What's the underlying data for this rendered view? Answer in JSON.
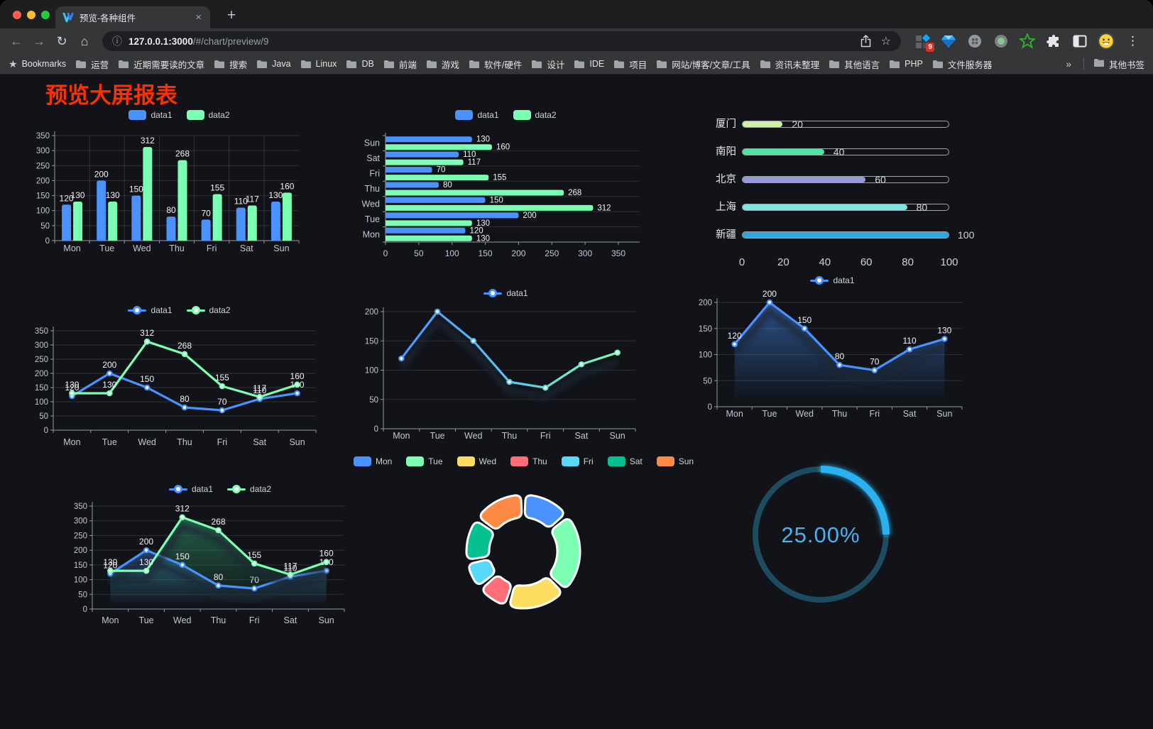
{
  "browser": {
    "tab": {
      "title": "预览-各种组件"
    },
    "address": {
      "host": "127.0.0.1:3000",
      "path": "/#/chart/preview/9"
    },
    "extensions_badge": "9",
    "bookmarks": {
      "star_label": "Bookmarks",
      "folders": [
        "运营",
        "近期需要读的文章",
        "搜索",
        "Java",
        "Linux",
        "DB",
        "前端",
        "游戏",
        "软件/硬件",
        "设计",
        "IDE",
        "项目",
        "网站/博客/文章/工具",
        "资讯未整理",
        "其他语言",
        "PHP",
        "文件服务器"
      ],
      "other": "其他书签"
    }
  },
  "icons": {
    "back": "←",
    "forward": "→",
    "reload": "↻",
    "home": "⌂",
    "info": "ⓘ",
    "bookmark_star": "☆",
    "tab_close": "×",
    "new_tab": "+",
    "menu_dots": "⋮",
    "bookmarks_star": "★",
    "overflow": "»"
  },
  "page": {
    "title": "预览大屏报表"
  },
  "chart_data": [
    {
      "id": "bar-vertical-grouped",
      "type": "bar",
      "categories": [
        "Mon",
        "Tue",
        "Wed",
        "Thu",
        "Fri",
        "Sat",
        "Sun"
      ],
      "series": [
        {
          "name": "data1",
          "color": "#4992ff",
          "values": [
            120,
            200,
            150,
            80,
            70,
            110,
            130
          ]
        },
        {
          "name": "data2",
          "color": "#7cffb2",
          "values": [
            130,
            130,
            312,
            268,
            155,
            117,
            160
          ]
        }
      ],
      "ylim": [
        0,
        350
      ],
      "ytick_step": 50,
      "legend_position": "top",
      "grid": true,
      "value_labels": true
    },
    {
      "id": "bar-horizontal-grouped",
      "type": "bar",
      "horizontal": true,
      "categories": [
        "Sun",
        "Sat",
        "Fri",
        "Thu",
        "Wed",
        "Tue",
        "Mon"
      ],
      "series": [
        {
          "name": "data1",
          "color": "#4992ff",
          "values": [
            130,
            110,
            70,
            80,
            150,
            200,
            120
          ]
        },
        {
          "name": "data2",
          "color": "#7cffb2",
          "values": [
            160,
            117,
            155,
            268,
            312,
            130,
            130
          ]
        }
      ],
      "xlim": [
        0,
        350
      ],
      "xtick_step": 50,
      "legend_position": "top",
      "value_labels": true
    },
    {
      "id": "progress-bars",
      "type": "bar",
      "horizontal": true,
      "style": "capsule",
      "items": [
        {
          "label": "厦门",
          "value": 20,
          "color": "#cdf0a4"
        },
        {
          "label": "南阳",
          "value": 40,
          "color": "#51e2a6"
        },
        {
          "label": "北京",
          "value": 60,
          "color": "#9599dd"
        },
        {
          "label": "上海",
          "value": 80,
          "color": "#7ce6e2"
        },
        {
          "label": "新疆",
          "value": 100,
          "color": "#31a8dd"
        }
      ],
      "xlim": [
        0,
        100
      ],
      "xticks": [
        0,
        20,
        40,
        60,
        80,
        100
      ]
    },
    {
      "id": "line-dual",
      "type": "line",
      "categories": [
        "Mon",
        "Tue",
        "Wed",
        "Thu",
        "Fri",
        "Sat",
        "Sun"
      ],
      "series": [
        {
          "name": "data1",
          "color": "#4992ff",
          "values": [
            120,
            200,
            150,
            80,
            70,
            110,
            130
          ]
        },
        {
          "name": "data2",
          "color": "#7cffb2",
          "values": [
            130,
            130,
            312,
            268,
            155,
            117,
            160
          ]
        }
      ],
      "ylim": [
        0,
        350
      ],
      "ytick_step": 50,
      "legend_position": "top",
      "value_labels": true
    },
    {
      "id": "line-gradient",
      "type": "line",
      "categories": [
        "Mon",
        "Tue",
        "Wed",
        "Thu",
        "Fri",
        "Sat",
        "Sun"
      ],
      "series": [
        {
          "name": "data1",
          "color": "#4992ff",
          "gradient": [
            "#4992ff",
            "#58c8f2",
            "#7cffb2"
          ],
          "values": [
            120,
            200,
            150,
            80,
            70,
            110,
            130
          ]
        }
      ],
      "ylim": [
        0,
        200
      ],
      "ytick_step": 50,
      "legend_position": "top",
      "value_labels": false,
      "shadow": true
    },
    {
      "id": "line-area-single",
      "type": "area",
      "categories": [
        "Mon",
        "Tue",
        "Wed",
        "Thu",
        "Fri",
        "Sat",
        "Sun"
      ],
      "series": [
        {
          "name": "data1",
          "color": "#4992ff",
          "area_color": "rgba(73,146,255,0.50)",
          "values": [
            120,
            200,
            150,
            80,
            70,
            110,
            130
          ]
        }
      ],
      "ylim": [
        0,
        200
      ],
      "ytick_step": 50,
      "legend_position": "top",
      "value_labels": true,
      "shadow": true
    },
    {
      "id": "line-area-dual",
      "type": "area",
      "categories": [
        "Mon",
        "Tue",
        "Wed",
        "Thu",
        "Fri",
        "Sat",
        "Sun"
      ],
      "series": [
        {
          "name": "data1",
          "color": "#4992ff",
          "area_color": "rgba(73,146,255,0.40)",
          "values": [
            120,
            200,
            150,
            80,
            70,
            110,
            130
          ]
        },
        {
          "name": "data2",
          "color": "#7cffb2",
          "area_color": "rgba(52,163,115,0.55)",
          "values": [
            130,
            130,
            312,
            268,
            155,
            117,
            160
          ]
        }
      ],
      "ylim": [
        0,
        350
      ],
      "ytick_step": 50,
      "legend_position": "top",
      "value_labels": true,
      "shadow": true
    },
    {
      "id": "pie-donut",
      "type": "pie",
      "legend_position": "top",
      "items": [
        {
          "label": "Mon",
          "value": 120,
          "color": "#4992ff"
        },
        {
          "label": "Tue",
          "value": 200,
          "color": "#7cffb2"
        },
        {
          "label": "Wed",
          "value": 150,
          "color": "#fddd60"
        },
        {
          "label": "Thu",
          "value": 80,
          "color": "#ff6e76"
        },
        {
          "label": "Fri",
          "value": 70,
          "color": "#58d9f9"
        },
        {
          "label": "Sat",
          "value": 110,
          "color": "#05c091"
        },
        {
          "label": "Sun",
          "value": 130,
          "color": "#ff8a45"
        }
      ]
    },
    {
      "id": "gauge-ring",
      "type": "gauge",
      "value": 25,
      "display": "25.00%",
      "color": "#29b2f0",
      "track_color": "#1d4b5f",
      "text_color": "#47b4f0"
    }
  ]
}
